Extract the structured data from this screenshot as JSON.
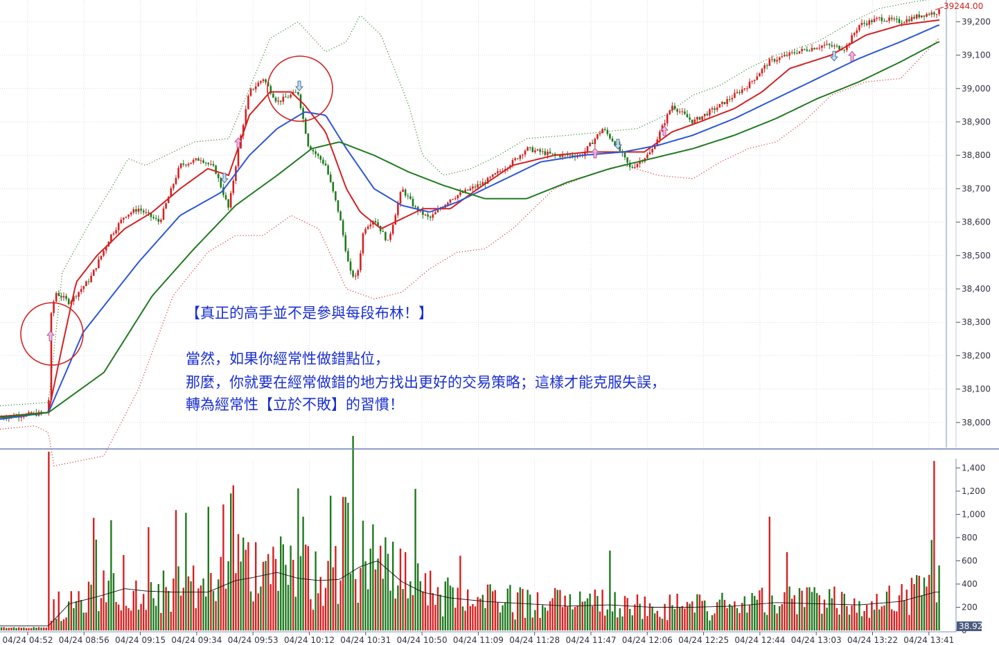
{
  "chart_data": [
    {
      "type": "candlestick",
      "title": "",
      "last_price_label": "39244.00",
      "last_price": 39244,
      "y_ticks": [
        38000,
        38100,
        38200,
        38300,
        38400,
        38500,
        38600,
        38700,
        38800,
        38900,
        39000,
        39100,
        39200
      ],
      "y_tick_labels": [
        "38,000",
        "38,100",
        "38,200",
        "38,300",
        "38,400",
        "38,500",
        "38,600",
        "38,700",
        "38,800",
        "38,900",
        "39,000",
        "39,100",
        "39,200"
      ],
      "ylim": [
        37925,
        39265
      ],
      "grid": "dotted",
      "price_path_anchors": [
        [
          0,
          38015
        ],
        [
          70,
          38030
        ],
        [
          73,
          38310
        ],
        [
          80,
          38390
        ],
        [
          100,
          38360
        ],
        [
          130,
          38430
        ],
        [
          160,
          38560
        ],
        [
          180,
          38620
        ],
        [
          200,
          38640
        ],
        [
          230,
          38600
        ],
        [
          260,
          38770
        ],
        [
          290,
          38790
        ],
        [
          310,
          38760
        ],
        [
          330,
          38640
        ],
        [
          345,
          38830
        ],
        [
          360,
          38990
        ],
        [
          380,
          39030
        ],
        [
          400,
          38960
        ],
        [
          430,
          38990
        ],
        [
          445,
          38830
        ],
        [
          470,
          38770
        ],
        [
          490,
          38620
        ],
        [
          505,
          38450
        ],
        [
          515,
          38430
        ],
        [
          525,
          38580
        ],
        [
          540,
          38610
        ],
        [
          560,
          38540
        ],
        [
          580,
          38700
        ],
        [
          600,
          38640
        ],
        [
          620,
          38610
        ],
        [
          650,
          38670
        ],
        [
          700,
          38720
        ],
        [
          740,
          38780
        ],
        [
          760,
          38820
        ],
        [
          800,
          38800
        ],
        [
          840,
          38800
        ],
        [
          870,
          38880
        ],
        [
          890,
          38830
        ],
        [
          910,
          38760
        ],
        [
          940,
          38810
        ],
        [
          970,
          38950
        ],
        [
          1000,
          38900
        ],
        [
          1040,
          38950
        ],
        [
          1080,
          39010
        ],
        [
          1110,
          39080
        ],
        [
          1150,
          39110
        ],
        [
          1190,
          39130
        ],
        [
          1220,
          39120
        ],
        [
          1240,
          39190
        ],
        [
          1270,
          39210
        ],
        [
          1300,
          39200
        ],
        [
          1330,
          39220
        ],
        [
          1355,
          39230
        ]
      ],
      "series": [
        {
          "name": "",
          "color": "#d42020",
          "anchors": [
            [
              0,
              38018
            ],
            [
              70,
              38030
            ],
            [
              90,
              38230
            ],
            [
              110,
              38420
            ],
            [
              140,
              38500
            ],
            [
              180,
              38580
            ],
            [
              220,
              38630
            ],
            [
              260,
              38700
            ],
            [
              300,
              38760
            ],
            [
              330,
              38740
            ],
            [
              360,
              38920
            ],
            [
              390,
              38990
            ],
            [
              420,
              38990
            ],
            [
              440,
              38950
            ],
            [
              470,
              38870
            ],
            [
              500,
              38700
            ],
            [
              520,
              38630
            ],
            [
              550,
              38580
            ],
            [
              580,
              38610
            ],
            [
              610,
              38640
            ],
            [
              650,
              38640
            ],
            [
              690,
              38700
            ],
            [
              740,
              38770
            ],
            [
              800,
              38800
            ],
            [
              850,
              38810
            ],
            [
              890,
              38810
            ],
            [
              930,
              38810
            ],
            [
              970,
              38870
            ],
            [
              1010,
              38900
            ],
            [
              1060,
              38940
            ],
            [
              1100,
              38990
            ],
            [
              1140,
              39060
            ],
            [
              1200,
              39100
            ],
            [
              1250,
              39160
            ],
            [
              1300,
              39190
            ],
            [
              1355,
              39205
            ]
          ]
        },
        {
          "name": "",
          "color": "#2b56d8",
          "anchors": [
            [
              0,
              38010
            ],
            [
              70,
              38030
            ],
            [
              120,
              38270
            ],
            [
              200,
              38480
            ],
            [
              260,
              38620
            ],
            [
              320,
              38690
            ],
            [
              360,
              38800
            ],
            [
              400,
              38880
            ],
            [
              440,
              38930
            ],
            [
              470,
              38920
            ],
            [
              500,
              38820
            ],
            [
              540,
              38700
            ],
            [
              580,
              38650
            ],
            [
              620,
              38630
            ],
            [
              660,
              38660
            ],
            [
              720,
              38720
            ],
            [
              780,
              38780
            ],
            [
              840,
              38800
            ],
            [
              900,
              38810
            ],
            [
              950,
              38830
            ],
            [
              1000,
              38860
            ],
            [
              1060,
              38910
            ],
            [
              1120,
              38970
            ],
            [
              1180,
              39030
            ],
            [
              1240,
              39090
            ],
            [
              1300,
              39140
            ],
            [
              1355,
              39190
            ]
          ]
        },
        {
          "name": "",
          "color": "#1f7a1f",
          "anchors": [
            [
              0,
              38015
            ],
            [
              70,
              38030
            ],
            [
              150,
              38150
            ],
            [
              220,
              38380
            ],
            [
              280,
              38520
            ],
            [
              340,
              38650
            ],
            [
              400,
              38740
            ],
            [
              450,
              38820
            ],
            [
              490,
              38840
            ],
            [
              540,
              38800
            ],
            [
              590,
              38750
            ],
            [
              640,
              38710
            ],
            [
              700,
              38670
            ],
            [
              760,
              38670
            ],
            [
              820,
              38720
            ],
            [
              880,
              38760
            ],
            [
              940,
              38790
            ],
            [
              1000,
              38820
            ],
            [
              1060,
              38860
            ],
            [
              1120,
              38910
            ],
            [
              1180,
              38970
            ],
            [
              1240,
              39020
            ],
            [
              1300,
              39080
            ],
            [
              1355,
              39140
            ]
          ]
        },
        {
          "name": "",
          "color": "#1f7a1f",
          "dash": "1,3",
          "anchors": [
            [
              0,
              38050
            ],
            [
              70,
              38060
            ],
            [
              90,
              38450
            ],
            [
              130,
              38600
            ],
            [
              160,
              38700
            ],
            [
              185,
              38790
            ],
            [
              210,
              38770
            ],
            [
              240,
              38800
            ],
            [
              280,
              38840
            ],
            [
              330,
              38850
            ],
            [
              360,
              39000
            ],
            [
              390,
              39150
            ],
            [
              430,
              39200
            ],
            [
              470,
              39110
            ],
            [
              500,
              39140
            ],
            [
              520,
              39220
            ],
            [
              550,
              39160
            ],
            [
              590,
              38950
            ],
            [
              610,
              38800
            ],
            [
              640,
              38740
            ],
            [
              680,
              38760
            ],
            [
              720,
              38800
            ],
            [
              760,
              38850
            ],
            [
              820,
              38860
            ],
            [
              870,
              38870
            ],
            [
              920,
              38880
            ],
            [
              960,
              38920
            ],
            [
              1000,
              38980
            ],
            [
              1040,
              39010
            ],
            [
              1080,
              39060
            ],
            [
              1120,
              39100
            ],
            [
              1180,
              39140
            ],
            [
              1230,
              39200
            ],
            [
              1270,
              39240
            ],
            [
              1320,
              39260
            ],
            [
              1355,
              39270
            ]
          ]
        },
        {
          "name": "",
          "color": "#d42020",
          "dash": "1,3",
          "anchors": [
            [
              0,
              37980
            ],
            [
              50,
              37990
            ],
            [
              70,
              37970
            ],
            [
              78,
              37870
            ],
            [
              150,
              37900
            ],
            [
              200,
              38100
            ],
            [
              250,
              38380
            ],
            [
              300,
              38510
            ],
            [
              340,
              38560
            ],
            [
              380,
              38560
            ],
            [
              420,
              38620
            ],
            [
              460,
              38580
            ],
            [
              500,
              38400
            ],
            [
              540,
              38370
            ],
            [
              580,
              38390
            ],
            [
              620,
              38460
            ],
            [
              660,
              38510
            ],
            [
              700,
              38520
            ],
            [
              740,
              38580
            ],
            [
              800,
              38700
            ],
            [
              850,
              38740
            ],
            [
              900,
              38770
            ],
            [
              950,
              38740
            ],
            [
              1000,
              38730
            ],
            [
              1040,
              38780
            ],
            [
              1080,
              38820
            ],
            [
              1120,
              38840
            ],
            [
              1160,
              38900
            ],
            [
              1200,
              38980
            ],
            [
              1250,
              39020
            ],
            [
              1300,
              39030
            ],
            [
              1355,
              39150
            ]
          ]
        }
      ]
    },
    {
      "type": "bar",
      "title": "",
      "last_value_label": "38.92",
      "y_ticks": [
        0,
        200,
        400,
        600,
        800,
        1000,
        1200,
        1400
      ],
      "y_tick_labels": [
        "0",
        "200",
        "400",
        "600",
        "800",
        "1,000",
        "1,200",
        "1,400"
      ],
      "ylim": [
        0,
        1480
      ],
      "x_tick_labels": [
        "04/24 04:52",
        "04/24 08:56",
        "04/24 09:15",
        "04/24 09:34",
        "04/24 09:53",
        "04/24 10:12",
        "04/24 10:31",
        "04/24 10:50",
        "04/24 11:09",
        "04/24 11:28",
        "04/24 11:47",
        "04/24 12:06",
        "04/24 12:25",
        "04/24 12:44",
        "04/24 13:03",
        "04/24 13:22",
        "04/24 13:41"
      ],
      "volume_spikes": [
        [
          72,
          1540
        ],
        [
          136,
          970
        ],
        [
          160,
          950
        ],
        [
          180,
          650
        ],
        [
          338,
          1250
        ],
        [
          345,
          830
        ],
        [
          352,
          800
        ],
        [
          436,
          980
        ],
        [
          497,
          1150
        ],
        [
          503,
          1100
        ],
        [
          1112,
          980
        ],
        [
          1350,
          1460
        ],
        [
          1346,
          780
        ]
      ],
      "ma_anchors": [
        [
          0,
          40
        ],
        [
          70,
          40
        ],
        [
          100,
          230
        ],
        [
          140,
          290
        ],
        [
          180,
          360
        ],
        [
          210,
          340
        ],
        [
          250,
          330
        ],
        [
          300,
          330
        ],
        [
          340,
          430
        ],
        [
          360,
          450
        ],
        [
          400,
          500
        ],
        [
          430,
          450
        ],
        [
          460,
          430
        ],
        [
          490,
          440
        ],
        [
          520,
          550
        ],
        [
          545,
          600
        ],
        [
          580,
          420
        ],
        [
          610,
          330
        ],
        [
          650,
          280
        ],
        [
          700,
          250
        ],
        [
          760,
          230
        ],
        [
          820,
          210
        ],
        [
          880,
          220
        ],
        [
          940,
          200
        ],
        [
          1000,
          200
        ],
        [
          1060,
          210
        ],
        [
          1120,
          240
        ],
        [
          1180,
          230
        ],
        [
          1240,
          220
        ],
        [
          1300,
          250
        ],
        [
          1350,
          330
        ]
      ]
    }
  ],
  "annotation": {
    "line1": "【真正的高手並不是參與每段布林！】",
    "line2": "當然，如果你經常性做錯點位，",
    "line3": "那麼，你就要在經常做錯的地方找出更好的交易策略；這樣才能克服失誤，",
    "line4": "轉為經常性【立於不敗】的習慣！"
  }
}
